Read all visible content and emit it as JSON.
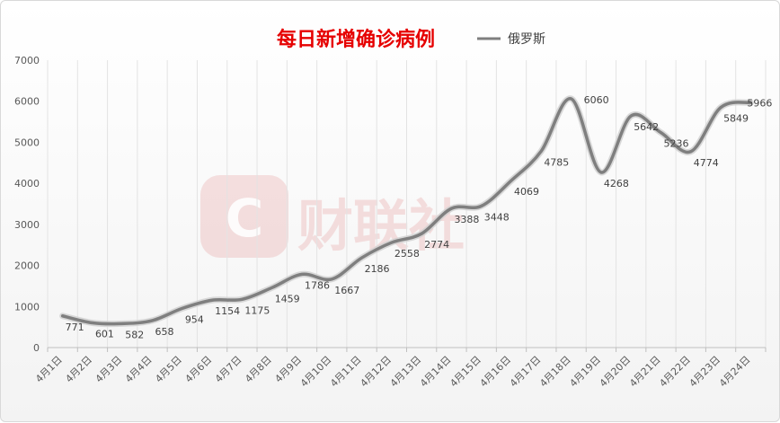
{
  "chart_data": {
    "type": "line",
    "title": "每日新增确诊病例",
    "categories": [
      "4月1日",
      "4月2日",
      "4月3日",
      "4月4日",
      "4月5日",
      "4月6日",
      "4月7日",
      "4月8日",
      "4月9日",
      "4月10日",
      "4月11日",
      "4月12日",
      "4月13日",
      "4月14日",
      "4月15日",
      "4月16日",
      "4月17日",
      "4月18日",
      "4月19日",
      "4月20日",
      "4月21日",
      "4月22日",
      "4月23日",
      "4月24日"
    ],
    "series": [
      {
        "name": "俄罗斯",
        "values": [
          771,
          601,
          582,
          658,
          954,
          1154,
          1175,
          1459,
          1786,
          1667,
          2186,
          2558,
          2774,
          3388,
          3448,
          4069,
          4785,
          6060,
          4268,
          5642,
          5236,
          4774,
          5849,
          5966
        ],
        "color": "#7f7f7f"
      }
    ],
    "ylim": [
      0,
      7000
    ],
    "yticks": [
      0,
      1000,
      2000,
      3000,
      4000,
      5000,
      6000,
      7000
    ],
    "grid": "vertical",
    "legend_position": "top-right",
    "smooth": true,
    "data_labels": true
  },
  "watermark": {
    "logo_letter": "C",
    "text": "财联社",
    "color": "#e8a9a9"
  }
}
